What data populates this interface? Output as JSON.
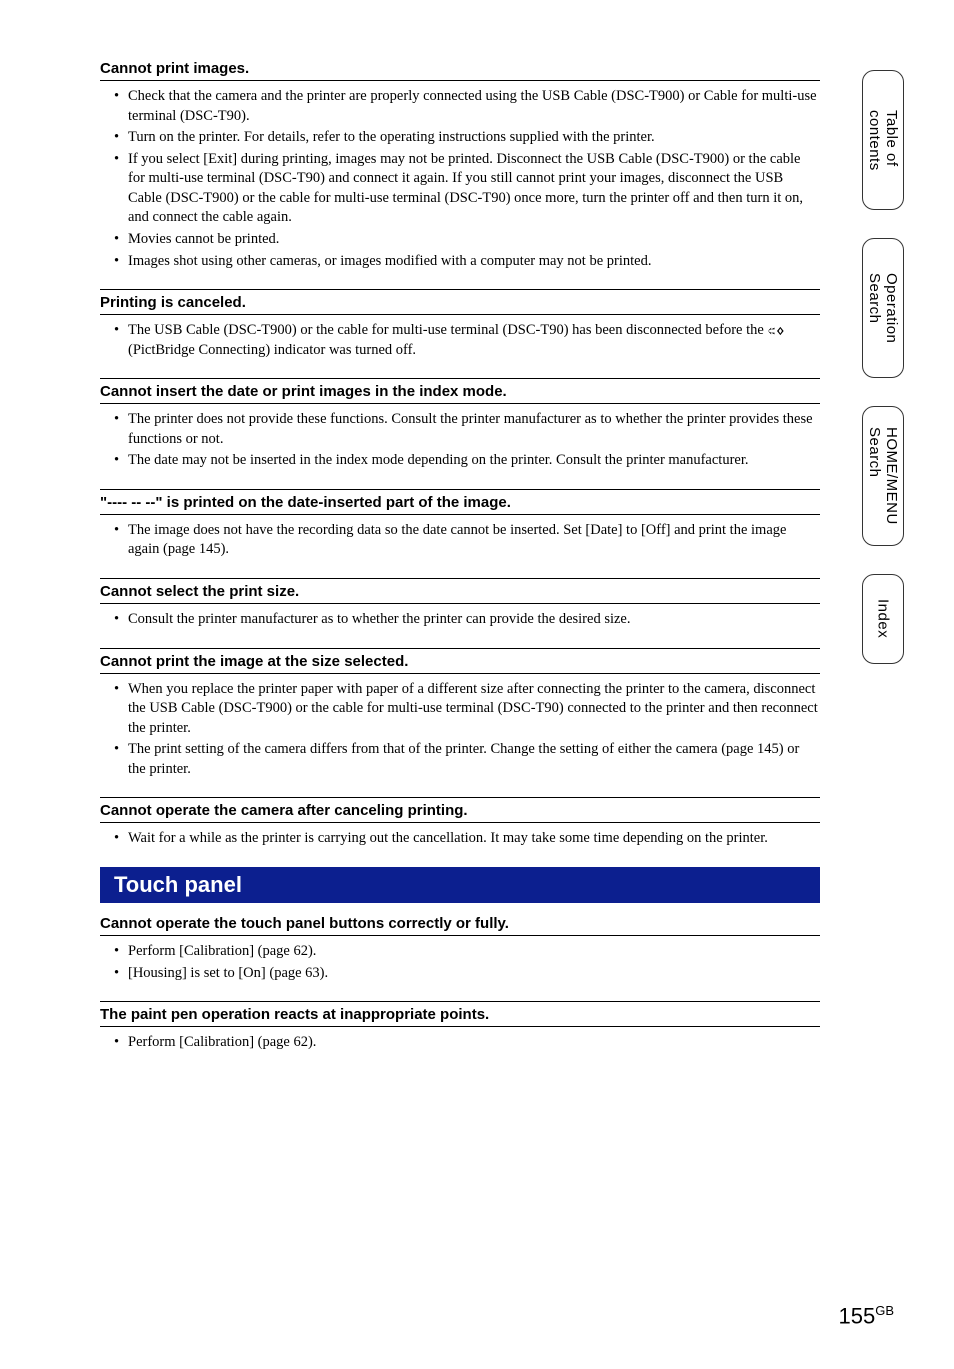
{
  "sections": [
    {
      "title": "Cannot print images.",
      "top_border": false,
      "items": [
        "Check that the camera and the printer are properly connected using the USB Cable (DSC-T900) or Cable for multi-use terminal (DSC-T90).",
        "Turn on the printer. For details, refer to the operating instructions supplied with the printer.",
        "If you select [Exit] during printing, images may not be printed. Disconnect the USB Cable (DSC-T900) or the cable for multi-use terminal (DSC-T90) and connect it again. If you still cannot print your images, disconnect the USB Cable (DSC-T900) or the cable for multi-use terminal (DSC-T90) once more, turn the printer off and then turn it on, and connect the cable again.",
        "Movies cannot be printed.",
        "Images shot using other cameras, or images modified with a computer may not be printed."
      ]
    },
    {
      "title": "Printing is canceled.",
      "top_border": true,
      "items": [
        "__PICT__"
      ]
    },
    {
      "title": "Cannot insert the date or print images in the index mode.",
      "top_border": true,
      "items": [
        "The printer does not provide these functions. Consult the printer manufacturer as to whether the printer provides these functions or not.",
        "The date may not be inserted in the index mode depending on the printer. Consult the printer manufacturer."
      ]
    },
    {
      "title": "\"---- -- --\" is printed on the date-inserted part of the image.",
      "top_border": true,
      "items": [
        "The image does not have the recording data so the date cannot be inserted. Set [Date] to [Off] and print the image again (page 145)."
      ]
    },
    {
      "title": "Cannot select the print size.",
      "top_border": true,
      "items": [
        "Consult the printer manufacturer as to whether the printer can provide the desired size."
      ]
    },
    {
      "title": "Cannot print the image at the size selected.",
      "top_border": true,
      "items": [
        "When you replace the printer paper with paper of a different size after connecting the printer to the camera, disconnect the USB Cable (DSC-T900) or the cable for multi-use terminal (DSC-T90) connected to the printer and then reconnect the printer.",
        "The print setting of the camera differs from that of the printer. Change the setting of either the camera (page 145) or the printer."
      ]
    },
    {
      "title": "Cannot operate the camera after canceling printing.",
      "top_border": true,
      "items": [
        "Wait for a while as the printer is carrying out the cancellation. It may take some time depending on the printer."
      ]
    }
  ],
  "pict_item": {
    "before": "The USB Cable (DSC-T900) or the cable for multi-use terminal (DSC-T90) has been disconnected before the ",
    "after": " (PictBridge Connecting) indicator was turned off."
  },
  "banner": "Touch panel",
  "post_sections": [
    {
      "title": "Cannot operate the touch panel buttons correctly or fully.",
      "top_border": false,
      "items": [
        "Perform [Calibration] (page 62).",
        "[Housing] is set to [On] (page 63)."
      ]
    },
    {
      "title": "The paint pen operation reacts at inappropriate points.",
      "top_border": true,
      "items": [
        "Perform [Calibration] (page 62)."
      ]
    }
  ],
  "tabs": [
    {
      "label": "Table of\ncontents",
      "short": false
    },
    {
      "label": "Operation\nSearch",
      "short": false
    },
    {
      "label": "HOME/MENU\nSearch",
      "short": false
    },
    {
      "label": "Index",
      "short": true
    }
  ],
  "page_number": "155",
  "page_suffix": "GB",
  "colors": {
    "banner_bg": "#0c1f8f",
    "banner_fg": "#ffffff",
    "text": "#000000",
    "border": "#000000"
  }
}
